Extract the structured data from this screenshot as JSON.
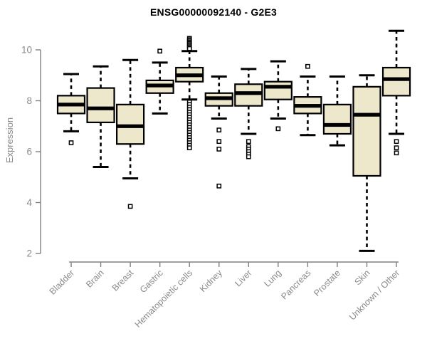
{
  "chart_data": {
    "type": "boxplot",
    "title": "ENSG00000092140 - G2E3",
    "ylabel": "Expression",
    "xlabel": "",
    "yticks": [
      2,
      4,
      6,
      8,
      10
    ],
    "ylim": [
      1.8,
      10.9
    ],
    "grid": false,
    "legend": "none",
    "colors": {
      "box_fill": "#EDE7CB",
      "box_border": "#000000",
      "median": "#000000",
      "whisker": "#000000",
      "axis_line": "#808080",
      "axis_text": "#8a8a8a",
      "title_text": "#000000",
      "outlier_fill": "#ffffff"
    },
    "categories": [
      "Bladder",
      "Brain",
      "Breast",
      "Gastric",
      "Hematopoietic cells",
      "Kidney",
      "Liver",
      "Lung",
      "Pancreas",
      "Prostate",
      "Skin",
      "Unknown / Other"
    ],
    "series": [
      {
        "category": "Bladder",
        "whisker_low": 6.8,
        "q1": 7.5,
        "median": 7.85,
        "q3": 8.2,
        "whisker_high": 9.05,
        "outliers": [
          6.35
        ]
      },
      {
        "category": "Brain",
        "whisker_low": 5.4,
        "q1": 7.15,
        "median": 7.7,
        "q3": 8.5,
        "whisker_high": 9.35,
        "outliers": []
      },
      {
        "category": "Breast",
        "whisker_low": 4.95,
        "q1": 6.3,
        "median": 7.0,
        "q3": 7.85,
        "whisker_high": 9.6,
        "outliers": [
          3.85
        ]
      },
      {
        "category": "Gastric",
        "whisker_low": 7.5,
        "q1": 8.3,
        "median": 8.6,
        "q3": 8.8,
        "whisker_high": 9.5,
        "outliers": [
          9.95
        ]
      },
      {
        "category": "Hematopoietic cells",
        "whisker_low": 8.05,
        "q1": 8.75,
        "median": 9.0,
        "q3": 9.3,
        "whisker_high": 9.95,
        "outliers": [
          10.45,
          10.4,
          10.35,
          10.3,
          10.25,
          10.2,
          10.15,
          10.1,
          10.05,
          7.95,
          7.85,
          7.75,
          7.65,
          7.55,
          7.45,
          7.35,
          7.25,
          7.15,
          7.05,
          6.95,
          6.85,
          6.75,
          6.65,
          6.55,
          6.45,
          6.35,
          6.25,
          6.15
        ]
      },
      {
        "category": "Kidney",
        "whisker_low": 7.3,
        "q1": 7.8,
        "median": 8.1,
        "q3": 8.3,
        "whisker_high": 8.95,
        "outliers": [
          6.85,
          6.4,
          6.1,
          4.65
        ]
      },
      {
        "category": "Liver",
        "whisker_low": 6.7,
        "q1": 7.8,
        "median": 8.3,
        "q3": 8.65,
        "whisker_high": 9.25,
        "outliers": [
          6.4,
          6.2,
          6.1,
          6.0,
          5.9,
          5.8
        ]
      },
      {
        "category": "Lung",
        "whisker_low": 7.3,
        "q1": 8.05,
        "median": 8.55,
        "q3": 8.75,
        "whisker_high": 9.55,
        "outliers": [
          6.9
        ]
      },
      {
        "category": "Pancreas",
        "whisker_low": 6.65,
        "q1": 7.5,
        "median": 7.8,
        "q3": 8.15,
        "whisker_high": 8.95,
        "outliers": [
          9.35
        ]
      },
      {
        "category": "Prostate",
        "whisker_low": 6.25,
        "q1": 6.7,
        "median": 7.05,
        "q3": 7.85,
        "whisker_high": 8.95,
        "outliers": []
      },
      {
        "category": "Skin",
        "whisker_low": 2.1,
        "q1": 5.05,
        "median": 7.45,
        "q3": 8.55,
        "whisker_high": 9.0,
        "outliers": []
      },
      {
        "category": "Unknown / Other",
        "whisker_low": 6.7,
        "q1": 8.2,
        "median": 8.85,
        "q3": 9.3,
        "whisker_high": 10.75,
        "outliers": [
          6.4,
          6.15,
          5.95
        ]
      }
    ]
  }
}
